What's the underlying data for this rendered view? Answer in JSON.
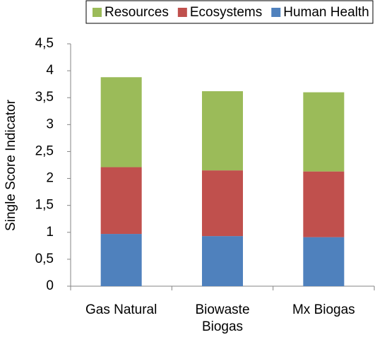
{
  "chart_data": {
    "type": "bar",
    "stacked": true,
    "y_label": "Single Score Indicator",
    "categories": [
      "Gas Natural",
      "Biowaste Biogas",
      "Mx Biogas"
    ],
    "series": [
      {
        "name": "Resources",
        "color": "#9bbb59",
        "values": [
          1.67,
          1.47,
          1.47
        ]
      },
      {
        "name": "Ecosystems",
        "color": "#c0504d",
        "values": [
          1.24,
          1.22,
          1.22
        ]
      },
      {
        "name": "Human Health",
        "color": "#4f81bd",
        "values": [
          0.97,
          0.93,
          0.91
        ]
      }
    ],
    "ylim": [
      0,
      4.5
    ],
    "yticks": [
      0,
      {
        "value": 0.5,
        "label": "0,5"
      },
      1,
      {
        "value": 1.5,
        "label": "1,5"
      },
      2,
      {
        "value": 2.5,
        "label": "2,5"
      },
      3,
      {
        "value": 3.5,
        "label": "3,5"
      },
      4,
      {
        "value": 4.5,
        "label": "4,5"
      }
    ],
    "legend": "top"
  }
}
